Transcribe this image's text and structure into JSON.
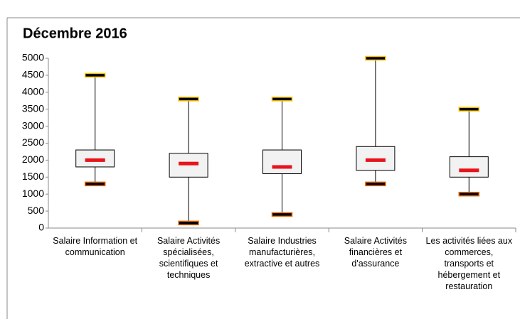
{
  "chart_data": {
    "type": "box",
    "title": "Décembre 2016",
    "categories": [
      "Salaire Information et communication",
      "Salaire Activités spécialisées, scientifiques et techniques",
      "Salaire Industries manufacturières, extractive et autres",
      "Salaire Activités financières et d'assurance",
      "Les activités liées aux commerces, transports et hébergement et restauration"
    ],
    "min": [
      1300,
      150,
      400,
      1300,
      1000
    ],
    "q1": [
      1800,
      1500,
      1600,
      1700,
      1500
    ],
    "median": [
      2000,
      1900,
      1800,
      2000,
      1700
    ],
    "q3": [
      2300,
      2200,
      2300,
      2400,
      2100
    ],
    "max": [
      4500,
      3800,
      3800,
      5000,
      3500
    ],
    "box_color": "#f2f2f2",
    "median_color": "#e8141c",
    "max_cap_color": "#ffc000",
    "min_cap_color": "#e46c0a",
    "ylim": [
      0,
      5000
    ],
    "yticks": [
      0,
      500,
      1000,
      1500,
      2000,
      2500,
      3000,
      3500,
      4000,
      4500,
      5000
    ]
  }
}
